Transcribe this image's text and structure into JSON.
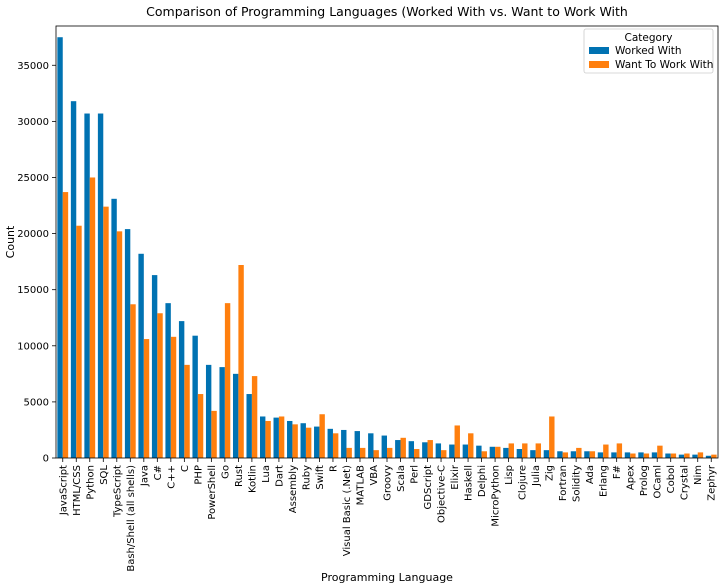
{
  "chart_data": {
    "type": "bar",
    "title": "Comparison of Programming Languages (Worked With vs. Want to Work With",
    "xlabel": "Programming Language",
    "ylabel": "Count",
    "ylim": [
      0,
      38500
    ],
    "yticks": [
      0,
      5000,
      10000,
      15000,
      20000,
      25000,
      30000,
      35000
    ],
    "grid": false,
    "legend_title": "Category",
    "legend_position": "top-right",
    "categories": [
      "JavaScript",
      "HTML/CSS",
      "Python",
      "SQL",
      "TypeScript",
      "Bash/Shell (all shells)",
      "Java",
      "C#",
      "C++",
      "C",
      "PHP",
      "PowerShell",
      "Go",
      "Rust",
      "Kotlin",
      "Lua",
      "Dart",
      "Assembly",
      "Ruby",
      "Swift",
      "R",
      "Visual Basic (.Net)",
      "MATLAB",
      "VBA",
      "Groovy",
      "Scala",
      "Perl",
      "GDScript",
      "Objective-C",
      "Elixir",
      "Haskell",
      "Delphi",
      "MicroPython",
      "Lisp",
      "Clojure",
      "Julia",
      "Zig",
      "Fortran",
      "Solidity",
      "Ada",
      "Erlang",
      "F#",
      "Apex",
      "Prolog",
      "OCaml",
      "Cobol",
      "Crystal",
      "Nim",
      "Zephyr"
    ],
    "series": [
      {
        "name": "Worked With",
        "color": "#0072b2",
        "values": [
          37500,
          31800,
          30700,
          30700,
          23100,
          20400,
          18200,
          16300,
          13800,
          12200,
          10900,
          8300,
          8100,
          7500,
          5700,
          3700,
          3600,
          3300,
          3100,
          2800,
          2600,
          2500,
          2400,
          2200,
          2000,
          1600,
          1500,
          1400,
          1300,
          1200,
          1200,
          1100,
          1000,
          900,
          800,
          700,
          700,
          600,
          600,
          600,
          500,
          500,
          500,
          500,
          500,
          400,
          300,
          300,
          200
        ]
      },
      {
        "name": "Want To Work With",
        "color": "#ff7f0e",
        "values": [
          23700,
          20700,
          25000,
          22400,
          20200,
          13700,
          10600,
          12900,
          10800,
          8300,
          5700,
          4200,
          13800,
          17200,
          7300,
          3300,
          3700,
          3000,
          2700,
          3900,
          2200,
          900,
          900,
          700,
          900,
          1800,
          800,
          1600,
          700,
          2900,
          2200,
          600,
          1000,
          1300,
          1300,
          1300,
          3700,
          500,
          900,
          600,
          1200,
          1300,
          400,
          400,
          1100,
          400,
          400,
          500,
          300
        ]
      }
    ]
  }
}
